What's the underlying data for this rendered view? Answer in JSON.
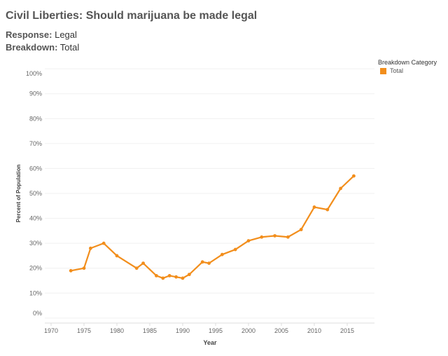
{
  "title": "Civil Liberties: Should marijuana be made legal",
  "response_label": "Response:",
  "response_value": "Legal",
  "breakdown_label": "Breakdown:",
  "breakdown_value": "Total",
  "legend": {
    "title": "Breakdown Category",
    "items": [
      {
        "label": "Total",
        "color": "#f28e1c"
      }
    ]
  },
  "chart_data": {
    "type": "line",
    "xlabel": "Year",
    "ylabel": "Percent of Population",
    "xlim": [
      1969,
      2021
    ],
    "ylim": [
      -2,
      102
    ],
    "xticks": [
      1970,
      1975,
      1980,
      1985,
      1990,
      1995,
      2000,
      2005,
      2010,
      2015
    ],
    "yticks": [
      0,
      10,
      20,
      30,
      40,
      50,
      60,
      70,
      80,
      90,
      100
    ],
    "series": [
      {
        "name": "Total",
        "color": "#f28e1c",
        "x": [
          1973,
          1975,
          1976,
          1978,
          1980,
          1983,
          1984,
          1986,
          1987,
          1988,
          1989,
          1990,
          1991,
          1993,
          1994,
          1996,
          1998,
          2000,
          2002,
          2004,
          2006,
          2008,
          2010,
          2012,
          2014,
          2016
        ],
        "y": [
          19,
          20,
          28,
          30,
          25,
          20,
          22,
          17,
          16,
          17,
          16.5,
          16,
          17.5,
          22.5,
          22,
          25.5,
          27.5,
          31,
          32.5,
          33,
          32.5,
          35.5,
          44.5,
          43.5,
          52,
          57
        ]
      }
    ]
  }
}
